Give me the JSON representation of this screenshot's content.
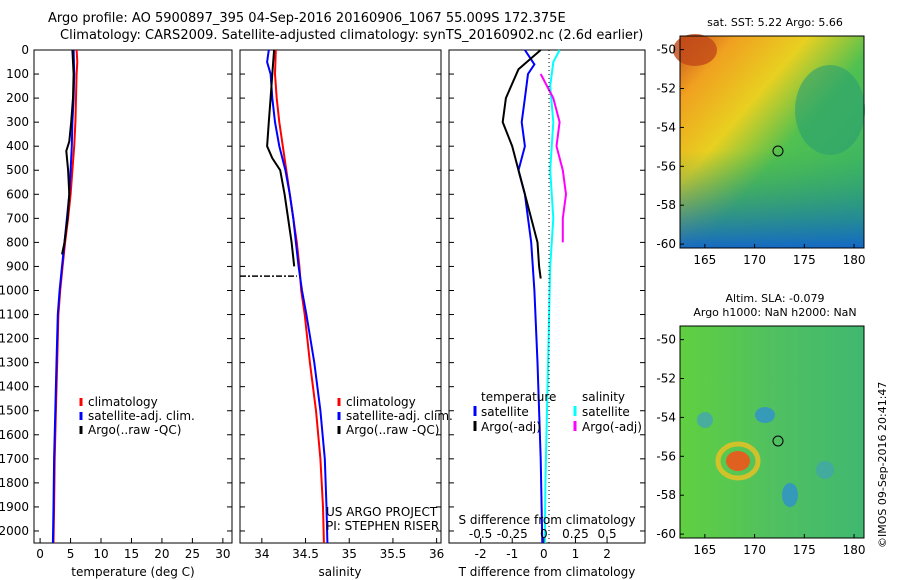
{
  "header": {
    "line1": "Argo profile: AO 5900897_395 04-Sep-2016 20160906_1067 55.009S 172.375E",
    "line2": "Climatology: CARS2009. Satellite-adjusted climatology: synTS_20160902.nc (2.6d earlier)"
  },
  "stamp": "©IMOS 09-Sep-2016 20:41:47",
  "colors": {
    "climatology": "#ff0000",
    "satellite": "#0000ff",
    "argo": "#000000",
    "sal_satellite": "#00ffff",
    "sal_argo": "#ff00ff"
  },
  "depth_ticks": [
    "0",
    "100",
    "200",
    "300",
    "400",
    "500",
    "600",
    "700",
    "800",
    "900",
    "1000",
    "1100",
    "1200",
    "1300",
    "1400",
    "1500",
    "1600",
    "1700",
    "1800",
    "1900",
    "2000"
  ],
  "chart_data": [
    {
      "type": "line",
      "xlabel": "temperature (deg C)",
      "ylabel": "",
      "xlim": [
        -1,
        31.5
      ],
      "ylim": [
        2050,
        0
      ],
      "xticks": [
        "0",
        "5",
        "10",
        "15",
        "20",
        "25",
        "30"
      ],
      "legend": [
        "climatology",
        "satellite-adj. clim.",
        "Argo(..raw -QC)"
      ],
      "series": [
        {
          "name": "climatology",
          "color": "#ff0000",
          "points": [
            [
              6.0,
              0
            ],
            [
              6.1,
              50
            ],
            [
              6.0,
              100
            ],
            [
              5.9,
              200
            ],
            [
              5.8,
              300
            ],
            [
              5.6,
              400
            ],
            [
              5.3,
              500
            ],
            [
              5.0,
              600
            ],
            [
              4.6,
              700
            ],
            [
              4.1,
              800
            ],
            [
              3.7,
              900
            ],
            [
              3.3,
              1000
            ],
            [
              3.0,
              1100
            ],
            [
              2.8,
              1300
            ],
            [
              2.6,
              1500
            ],
            [
              2.4,
              1700
            ],
            [
              2.3,
              1900
            ],
            [
              2.2,
              2050
            ]
          ]
        },
        {
          "name": "satellite-adj. clim.",
          "color": "#0000ff",
          "points": [
            [
              5.5,
              0
            ],
            [
              5.6,
              100
            ],
            [
              5.5,
              200
            ],
            [
              5.3,
              300
            ],
            [
              5.2,
              400
            ],
            [
              5.0,
              500
            ],
            [
              4.8,
              600
            ],
            [
              4.4,
              700
            ],
            [
              4.0,
              800
            ],
            [
              3.6,
              900
            ],
            [
              3.2,
              1000
            ],
            [
              2.9,
              1100
            ],
            [
              2.7,
              1300
            ],
            [
              2.5,
              1500
            ],
            [
              2.3,
              1700
            ],
            [
              2.2,
              1900
            ],
            [
              2.1,
              2050
            ]
          ]
        },
        {
          "name": "Argo(..raw -QC)",
          "color": "#000000",
          "points": [
            [
              5.3,
              0
            ],
            [
              5.5,
              100
            ],
            [
              5.4,
              200
            ],
            [
              5.1,
              300
            ],
            [
              4.8,
              380
            ],
            [
              4.3,
              420
            ],
            [
              4.6,
              500
            ],
            [
              4.8,
              600
            ],
            [
              4.5,
              700
            ],
            [
              4.0,
              800
            ],
            [
              3.6,
              850
            ]
          ]
        }
      ]
    },
    {
      "type": "line",
      "xlabel": "salinity",
      "ylabel": "",
      "xlim": [
        33.75,
        36.05
      ],
      "ylim": [
        2050,
        0
      ],
      "xticks": [
        "34",
        "34.5",
        "35",
        "35.5",
        "36"
      ],
      "legend": [
        "climatology",
        "satellite-adj. clim.",
        "Argo(..raw -QC)"
      ],
      "annotations": [
        "US ARGO PROJECT",
        "PI: STEPHEN RISER"
      ],
      "series": [
        {
          "name": "climatology",
          "color": "#ff0000",
          "points": [
            [
              34.16,
              0
            ],
            [
              34.15,
              100
            ],
            [
              34.17,
              200
            ],
            [
              34.2,
              300
            ],
            [
              34.24,
              400
            ],
            [
              34.28,
              500
            ],
            [
              34.32,
              600
            ],
            [
              34.36,
              700
            ],
            [
              34.4,
              800
            ],
            [
              34.43,
              900
            ],
            [
              34.45,
              1000
            ],
            [
              34.49,
              1100
            ],
            [
              34.55,
              1300
            ],
            [
              34.62,
              1500
            ],
            [
              34.67,
              1700
            ],
            [
              34.7,
              1900
            ],
            [
              34.71,
              2050
            ]
          ]
        },
        {
          "name": "satellite-adj. clim.",
          "color": "#0000ff",
          "points": [
            [
              34.08,
              0
            ],
            [
              34.06,
              50
            ],
            [
              34.1,
              100
            ],
            [
              34.12,
              200
            ],
            [
              34.15,
              300
            ],
            [
              34.2,
              400
            ],
            [
              34.27,
              500
            ],
            [
              34.32,
              600
            ],
            [
              34.36,
              700
            ],
            [
              34.39,
              800
            ],
            [
              34.42,
              900
            ],
            [
              34.46,
              1000
            ],
            [
              34.51,
              1100
            ],
            [
              34.6,
              1300
            ],
            [
              34.67,
              1500
            ],
            [
              34.72,
              1700
            ],
            [
              34.74,
              1900
            ],
            [
              34.75,
              2050
            ]
          ]
        },
        {
          "name": "Argo(..raw -QC)",
          "color": "#000000",
          "points": [
            [
              34.14,
              0
            ],
            [
              34.12,
              100
            ],
            [
              34.1,
              200
            ],
            [
              34.08,
              300
            ],
            [
              34.06,
              400
            ],
            [
              34.12,
              450
            ],
            [
              34.21,
              500
            ],
            [
              34.26,
              600
            ],
            [
              34.3,
              700
            ],
            [
              34.34,
              800
            ],
            [
              34.37,
              900
            ]
          ]
        },
        {
          "name": "Argo flag",
          "color": "#000000",
          "dashed": true,
          "points": [
            [
              33.75,
              940
            ],
            [
              34.4,
              940
            ]
          ]
        }
      ]
    },
    {
      "type": "line",
      "xlabel": "T difference from climatology",
      "ylabel": "",
      "top_label": "S difference from climatology",
      "xlim": [
        -3,
        3.2
      ],
      "ylim": [
        2050,
        0
      ],
      "xticks": [
        "-2",
        "-1",
        "0",
        "1",
        "2"
      ],
      "top_xticks": [
        "-0.5",
        "-0.25",
        "0",
        "0.25",
        "0.5"
      ],
      "legend_t": [
        "temperature",
        "satellite",
        "Argo(-adj)"
      ],
      "legend_s": [
        "salinity",
        "satellite",
        "Argo(-adj)"
      ],
      "series": [
        {
          "name": "satellite",
          "color": "#0000ff",
          "points": [
            [
              -0.6,
              0
            ],
            [
              -0.3,
              60
            ],
            [
              -0.5,
              100
            ],
            [
              -0.6,
              200
            ],
            [
              -0.7,
              300
            ],
            [
              -0.6,
              400
            ],
            [
              -0.8,
              500
            ],
            [
              -0.6,
              600
            ],
            [
              -0.5,
              700
            ],
            [
              -0.4,
              800
            ],
            [
              -0.3,
              1000
            ],
            [
              -0.2,
              1300
            ],
            [
              -0.1,
              1700
            ],
            [
              -0.05,
              2050
            ]
          ]
        },
        {
          "name": "Argo(-adj)",
          "color": "#000000",
          "points": [
            [
              -0.1,
              0
            ],
            [
              -0.8,
              80
            ],
            [
              -1.2,
              200
            ],
            [
              -1.3,
              300
            ],
            [
              -1.0,
              400
            ],
            [
              -0.8,
              500
            ],
            [
              -0.6,
              600
            ],
            [
              -0.4,
              700
            ],
            [
              -0.2,
              800
            ],
            [
              -0.15,
              900
            ],
            [
              -0.1,
              950
            ]
          ]
        },
        {
          "name": "salinity satellite",
          "color": "#00ffff",
          "points": [
            [
              0.5,
              0
            ],
            [
              0.3,
              50
            ],
            [
              0.2,
              150
            ],
            [
              0.3,
              300
            ],
            [
              0.2,
              500
            ],
            [
              0.3,
              700
            ],
            [
              0.2,
              900
            ],
            [
              0.15,
              1200
            ],
            [
              0.1,
              1500
            ],
            [
              0.05,
              1800
            ],
            [
              0.03,
              2050
            ]
          ]
        },
        {
          "name": "salinity Argo(-adj)",
          "color": "#ff00ff",
          "points": [
            [
              -0.1,
              100
            ],
            [
              0.3,
              200
            ],
            [
              0.5,
              300
            ],
            [
              0.4,
              400
            ],
            [
              0.6,
              500
            ],
            [
              0.7,
              600
            ],
            [
              0.6,
              700
            ],
            [
              0.6,
              800
            ]
          ]
        }
      ]
    }
  ],
  "map1": {
    "title": "sat. SST: 5.22  Argo: 5.66",
    "xticks": [
      "165",
      "170",
      "175",
      "180"
    ],
    "yticks": [
      "-50",
      "-52",
      "-54",
      "-56",
      "-58",
      "-60"
    ],
    "marker": [
      172.375,
      -55.0
    ]
  },
  "map2": {
    "title_line1": "Altim. SLA: -0.079",
    "title_line2": "Argo h1000: NaN h2000: NaN",
    "xticks": [
      "165",
      "170",
      "175",
      "180"
    ],
    "yticks": [
      "-50",
      "-52",
      "-54",
      "-56",
      "-58",
      "-60"
    ],
    "marker": [
      172.375,
      -55.0
    ]
  }
}
